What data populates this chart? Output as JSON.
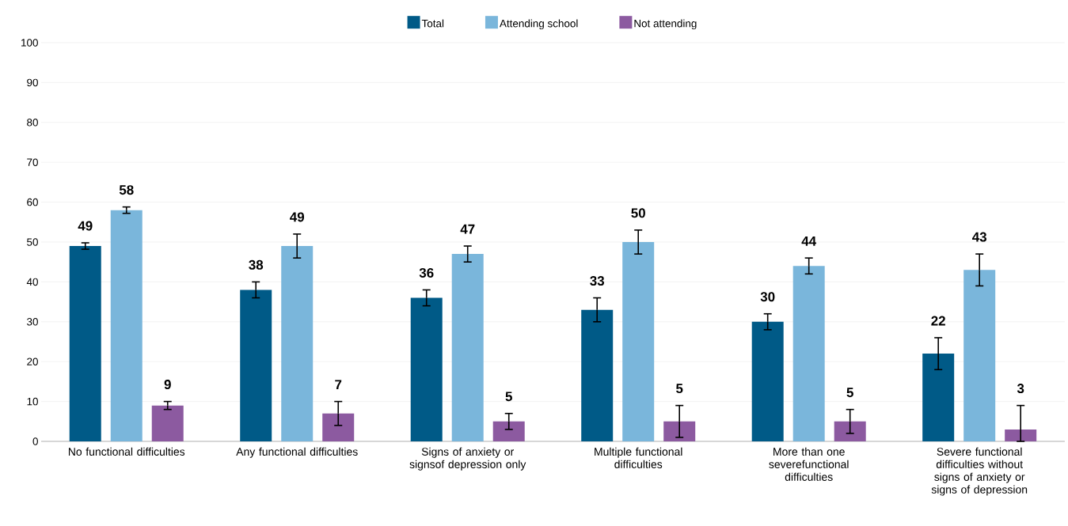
{
  "chart_data": {
    "type": "bar",
    "categories": [
      "No functional difficulties",
      "Any functional difficulties",
      "Signs of anxiety or signsof depression only",
      "Multiple functional difficulties",
      "More than one severefunctional difficulties",
      "Severe functional difficulties without signs of anxiety or signs of depression"
    ],
    "series": [
      {
        "name": "Total",
        "color": "#005a87",
        "values": [
          49,
          38,
          36,
          33,
          30,
          22
        ],
        "errors": [
          0.8,
          2,
          2,
          3,
          2,
          4
        ],
        "value_labels": [
          "49",
          "38",
          "36",
          "33",
          "30",
          "22"
        ]
      },
      {
        "name": "Attending school",
        "color": "#7ab6db",
        "values": [
          58,
          49,
          47,
          50,
          44,
          43
        ],
        "errors": [
          0.8,
          3,
          2,
          3,
          2,
          4
        ],
        "value_labels": [
          "58",
          "49",
          "47",
          "50",
          "44",
          "43"
        ]
      },
      {
        "name": "Not attending",
        "color": "#8c5aa0",
        "values": [
          9,
          7,
          5,
          5,
          5,
          3
        ],
        "errors": [
          1,
          3,
          2,
          4,
          3,
          [
            0,
            9
          ]
        ],
        "value_labels": [
          "9",
          "7",
          "5",
          "5",
          "5",
          "3"
        ]
      }
    ],
    "ylim": [
      0,
      100
    ],
    "yticks": [
      0,
      10,
      20,
      30,
      40,
      50,
      60,
      70,
      80,
      90,
      100
    ],
    "grid": "y",
    "legend": "top"
  }
}
